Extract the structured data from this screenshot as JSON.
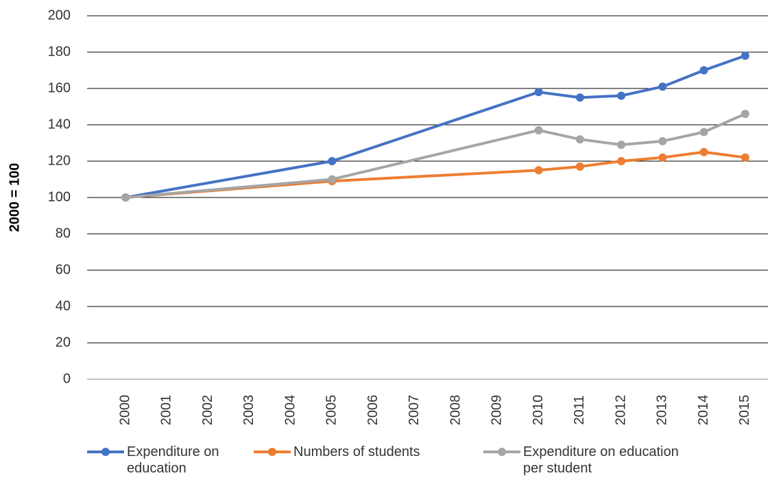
{
  "chart_data": {
    "type": "line",
    "y_label": "2000 = 100",
    "x": [
      2000,
      2005,
      2010,
      2011,
      2012,
      2013,
      2014,
      2015
    ],
    "xlim": [
      1999.5,
      2015.5
    ],
    "xticks": [
      2000,
      2001,
      2002,
      2003,
      2004,
      2005,
      2006,
      2007,
      2008,
      2009,
      2010,
      2011,
      2012,
      2013,
      2014,
      2015
    ],
    "ylim": [
      0,
      200
    ],
    "yticks": [
      0,
      20,
      40,
      60,
      80,
      100,
      120,
      140,
      160,
      180,
      200
    ],
    "grid": true,
    "legend": "bottom",
    "series": [
      {
        "name": "Expenditure on education",
        "color": "#4472c4",
        "values": [
          100,
          120,
          158,
          155,
          156,
          161,
          170,
          178
        ]
      },
      {
        "name": "Numbers of students",
        "color": "#ed7d31",
        "values": [
          100,
          109,
          115,
          117,
          120,
          122,
          125,
          122
        ]
      },
      {
        "name": "Expenditure on education per student",
        "color": "#a5a5a5",
        "values": [
          100,
          110,
          137,
          132,
          129,
          131,
          136,
          146
        ]
      }
    ]
  }
}
